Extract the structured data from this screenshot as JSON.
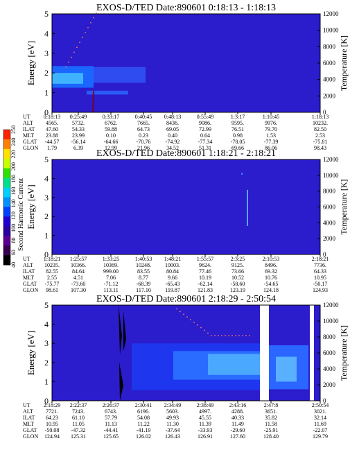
{
  "colorbar": {
    "label": "Second Harmonic Current",
    "ticks": [
      "40",
      "60",
      "80",
      "100",
      "120",
      "140",
      "160",
      "180",
      "200",
      "220",
      "240",
      "250"
    ],
    "colors": [
      "#000000",
      "#3a0050",
      "#5a0090",
      "#2a00a0",
      "#2000d0",
      "#0040ff",
      "#0090ff",
      "#00d0ff",
      "#00e08a",
      "#30e000",
      "#c8ff00",
      "#ffe000",
      "#ff8000",
      "#ff2000"
    ]
  },
  "chart_data": [
    {
      "type": "heatmap",
      "title": "EXOS-D/TED   Date:890601   0:18:13 - 1:18:13",
      "ylabel": "Energy [eV]",
      "y2label": "Temperature [K]",
      "ylim": [
        0,
        5
      ],
      "y2lim": [
        0,
        12000
      ],
      "yticks": [
        "0",
        "1",
        "2",
        "3",
        "4",
        "5"
      ],
      "y2ticks": [
        "0",
        "2000",
        "4000",
        "6000",
        "8000",
        "10000",
        "12000"
      ],
      "orbit_rows": [
        "UT",
        "ALT",
        "ILAT",
        "MLT",
        "GLAT",
        "GLON"
      ],
      "orbit_columns": [
        [
          "0:18:13",
          "4565.",
          "47.60",
          "23.88",
          "-44.57",
          "1.79"
        ],
        [
          "0:25:49",
          "5732.",
          "54.33",
          "23.99",
          "-56.14",
          "6.39"
        ],
        [
          "0:33:17",
          "6762.",
          "59.88",
          "0.10",
          "-64.66",
          "12.99"
        ],
        [
          "0:40:45",
          "7665.",
          "64.73",
          "0.23",
          "-70.76",
          "21.96"
        ],
        [
          "0:48:13",
          "8436.",
          "69.05",
          "0.40",
          "-74.92",
          "34.52"
        ],
        [
          "0:55:49",
          "9086.",
          "72.99",
          "0.64",
          "-77.34",
          "51.31"
        ],
        [
          "1:3:17",
          "9595.",
          "76.51",
          "0.98",
          "-78.05",
          "69.66"
        ],
        [
          "1:10:45",
          "9976.",
          "79.70",
          "1.53",
          "-77.39",
          "86.06"
        ],
        [
          "1:18:13",
          "10232.",
          "82.50",
          "2.53",
          "-75.81",
          "98.43"
        ]
      ]
    },
    {
      "type": "heatmap",
      "title": "EXOS-D/TED   Date:890601   1:18:21 - 2:18:21",
      "ylabel": "Energy [eV]",
      "y2label": "Temperature [K]",
      "ylim": [
        0,
        5
      ],
      "y2lim": [
        0,
        12000
      ],
      "yticks": [
        "0",
        "1",
        "2",
        "3",
        "4",
        "5"
      ],
      "y2ticks": [
        "0",
        "2000",
        "4000",
        "6000",
        "8000",
        "10000",
        "12000"
      ],
      "orbit_rows": [
        "UT",
        "ALT",
        "ILAT",
        "MLT",
        "GLAT",
        "GLON"
      ],
      "orbit_columns": [
        [
          "1:18:21",
          "10235.",
          "82.55",
          "2.55",
          "-75.77",
          "98.61"
        ],
        [
          "1:25:57",
          "10366.",
          "84.64",
          "4.51",
          "-73.60",
          "107.30"
        ],
        [
          "1:33:25",
          "10369.",
          "999.00",
          "7.06",
          "-71.12",
          "113.11"
        ],
        [
          "1:40:53",
          "10248.",
          "83.55",
          "8.77",
          "-68.39",
          "117.10"
        ],
        [
          "1:48:21",
          "10003.",
          "80.84",
          "9.66",
          "-65.43",
          "119.87"
        ],
        [
          "1:55:57",
          "9624.",
          "77.46",
          "10.19",
          "-62.14",
          "121.83"
        ],
        [
          "2:3:25",
          "9125.",
          "73.66",
          "10.52",
          "-58.60",
          "123.19"
        ],
        [
          "2:10:53",
          "8496.",
          "69.32",
          "10.76",
          "-54.65",
          "124.18"
        ],
        [
          "2:18:21",
          "7736.",
          "64.33",
          "10.95",
          "-50.17",
          "124.93"
        ]
      ]
    },
    {
      "type": "heatmap",
      "title": "EXOS-D/TED   Date:890601   2:18:29 - 2:50:54",
      "ylabel": "Energy [eV]",
      "y2label": "Temperature [K]",
      "ylim": [
        0,
        5
      ],
      "y2lim": [
        0,
        12000
      ],
      "yticks": [
        "0",
        "1",
        "2",
        "3",
        "4",
        "5"
      ],
      "y2ticks": [
        "0",
        "2000",
        "4000",
        "6000",
        "8000",
        "10000",
        "12000"
      ],
      "orbit_rows": [
        "UT",
        "ALT",
        "ILAT",
        "MLT",
        "GLAT",
        "GLON"
      ],
      "orbit_columns": [
        [
          "2:18:29",
          "7721.",
          "64.23",
          "10.95",
          "-50.08",
          "124.94"
        ],
        [
          "2:22:37",
          "7243.",
          "61.10",
          "11.05",
          "-47.32",
          "125.31"
        ],
        [
          "2:26:37",
          "6743.",
          "57.79",
          "11.13",
          "-44.41",
          "125.65"
        ],
        [
          "2:30:41",
          "6196.",
          "54.08",
          "11.22",
          "-41.19",
          "126.02"
        ],
        [
          "2:34:49",
          "5603.",
          "49.93",
          "11.30",
          "-37.64",
          "126.43"
        ],
        [
          "2:38:49",
          "4997.",
          "45.55",
          "11.39",
          "-33.93",
          "126.91"
        ],
        [
          "2:43:16",
          "4288.",
          "40.33",
          "11.49",
          "-29.60",
          "127.60"
        ],
        [
          "2:47:8",
          "3651.",
          "35.82",
          "11.58",
          "-25.91",
          "128.40"
        ],
        [
          "2:50:54",
          "3021.",
          "32.14",
          "11.69",
          "-22.07",
          "129.79"
        ]
      ]
    }
  ]
}
